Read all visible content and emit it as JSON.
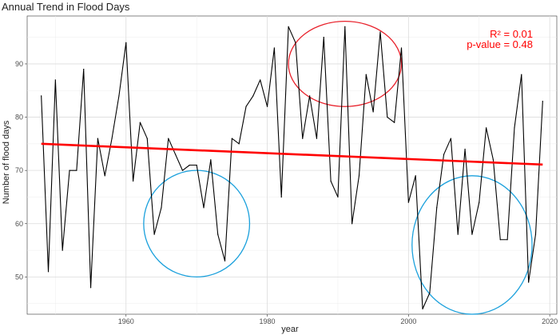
{
  "chart_data": {
    "type": "line",
    "title": "Annual Trend in Flood Days",
    "xlabel": "year",
    "ylabel": "Number of flood days",
    "xlim": [
      1946,
      2021
    ],
    "ylim": [
      43,
      99
    ],
    "x_ticks": [
      1960,
      1980,
      2000,
      2020
    ],
    "y_ticks": [
      50,
      60,
      70,
      80,
      90
    ],
    "grid": true,
    "series": [
      {
        "x": [
          1948,
          1949,
          1950,
          1951,
          1952,
          1953,
          1954,
          1955,
          1956,
          1957,
          1958,
          1959,
          1960,
          1961,
          1962,
          1963,
          1964,
          1965,
          1966,
          1967,
          1968,
          1969,
          1970,
          1971,
          1972,
          1973,
          1974,
          1975,
          1976,
          1977,
          1978,
          1979,
          1980,
          1981,
          1982,
          1983,
          1984,
          1985,
          1986,
          1987,
          1988,
          1989,
          1990,
          1991,
          1992,
          1993,
          1994,
          1995,
          1996,
          1997,
          1998,
          1999,
          2000,
          2001,
          2002,
          2003,
          2004,
          2005,
          2006,
          2007,
          2008,
          2009,
          2010,
          2011,
          2012,
          2013,
          2014,
          2015,
          2016,
          2017,
          2018,
          2019
        ],
        "values": [
          84,
          51,
          87,
          55,
          70,
          70,
          89,
          48,
          76,
          69,
          76,
          84,
          94,
          68,
          79,
          76,
          58,
          63,
          76,
          73,
          70,
          71,
          71,
          63,
          72,
          58,
          53,
          76,
          75,
          82,
          84,
          87,
          82,
          93,
          65,
          97,
          94,
          76,
          84,
          76,
          95,
          68,
          65,
          97,
          60,
          69,
          88,
          81,
          96,
          80,
          79,
          93,
          64,
          69,
          44,
          47,
          63,
          73,
          76,
          58,
          74,
          58,
          64,
          78,
          72,
          57,
          57,
          78,
          88,
          49,
          58,
          83
        ],
        "color": "#000000"
      },
      {
        "type": "trend",
        "x": [
          1948,
          2019
        ],
        "values": [
          75.0,
          71.1
        ],
        "color": "#ff0000"
      }
    ],
    "annotations": {
      "r_squared_label": "R² =  0.01",
      "p_value_label": "p-value =  0.48",
      "color": "#ff0000",
      "circles": [
        {
          "center": [
            1991,
            90
          ],
          "radius_x": 8,
          "radius_y": 8,
          "color": "#e8202a"
        },
        {
          "center": [
            1970,
            60
          ],
          "radius_x": 7.5,
          "radius_y": 10,
          "color": "#1aa0dc"
        },
        {
          "center": [
            2009,
            56
          ],
          "radius_x": 8.5,
          "radius_y": 13,
          "color": "#1aa0dc"
        }
      ]
    }
  }
}
